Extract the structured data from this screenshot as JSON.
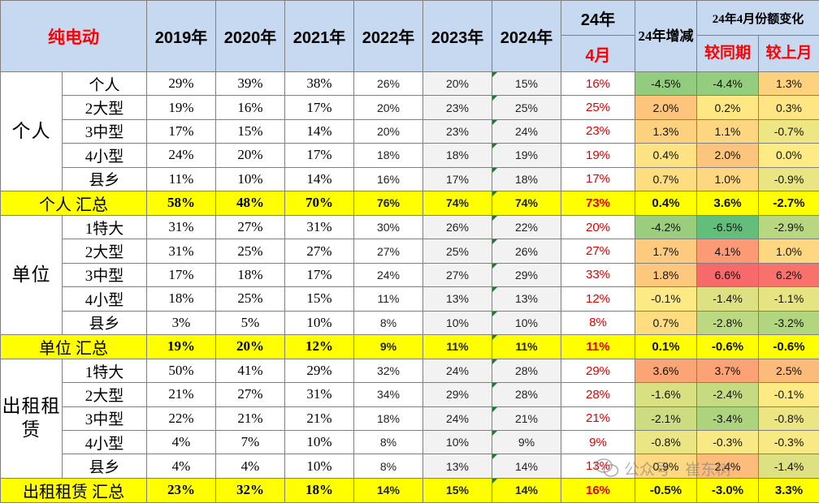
{
  "header": {
    "title": "纯电动",
    "years": [
      "2019年",
      "2020年",
      "2021年",
      "2022年",
      "2023年",
      "2024年"
    ],
    "col_24": "24年",
    "col_apr": "4月",
    "col_change_24": "24年增减",
    "col_apr_share_change": "24年4月份额变化",
    "col_yoy": "较同期",
    "col_mom": "较上月"
  },
  "groups": [
    {
      "name": "个人",
      "rows": [
        {
          "label": "个人",
          "values": [
            "29%",
            "39%",
            "38%",
            "26%",
            "20%",
            "15%"
          ],
          "apr": "16%",
          "chg24": "-4.5%",
          "yoy": "-4.4%",
          "mom": "1.3%"
        },
        {
          "label": "2大型",
          "values": [
            "19%",
            "16%",
            "17%",
            "20%",
            "23%",
            "25%"
          ],
          "apr": "25%",
          "chg24": "2.0%",
          "yoy": "0.2%",
          "mom": "0.3%"
        },
        {
          "label": "3中型",
          "values": [
            "17%",
            "15%",
            "14%",
            "20%",
            "23%",
            "24%"
          ],
          "apr": "23%",
          "chg24": "1.3%",
          "yoy": "1.1%",
          "mom": "-0.7%"
        },
        {
          "label": "4小型",
          "values": [
            "24%",
            "20%",
            "17%",
            "18%",
            "18%",
            "19%"
          ],
          "apr": "19%",
          "chg24": "0.4%",
          "yoy": "2.0%",
          "mom": "0.0%"
        },
        {
          "label": "县乡",
          "values": [
            "11%",
            "10%",
            "14%",
            "16%",
            "17%",
            "18%"
          ],
          "apr": "17%",
          "chg24": "0.7%",
          "yoy": "1.0%",
          "mom": "-0.9%"
        }
      ],
      "summary": {
        "label": "个人 汇总",
        "values": [
          "58%",
          "48%",
          "70%",
          "76%",
          "74%",
          "74%"
        ],
        "apr": "73%",
        "chg24": "0.4%",
        "yoy": "3.6%",
        "mom": "-2.7%"
      }
    },
    {
      "name": "单位",
      "rows": [
        {
          "label": "1特大",
          "values": [
            "31%",
            "27%",
            "31%",
            "30%",
            "26%",
            "22%"
          ],
          "apr": "20%",
          "chg24": "-4.2%",
          "yoy": "-6.5%",
          "mom": "-2.9%"
        },
        {
          "label": "2大型",
          "values": [
            "31%",
            "25%",
            "27%",
            "27%",
            "25%",
            "26%"
          ],
          "apr": "27%",
          "chg24": "1.7%",
          "yoy": "4.1%",
          "mom": "1.0%"
        },
        {
          "label": "3中型",
          "values": [
            "17%",
            "18%",
            "17%",
            "24%",
            "27%",
            "29%"
          ],
          "apr": "33%",
          "chg24": "1.8%",
          "yoy": "6.6%",
          "mom": "6.2%"
        },
        {
          "label": "4小型",
          "values": [
            "18%",
            "25%",
            "15%",
            "11%",
            "13%",
            "13%"
          ],
          "apr": "12%",
          "chg24": "-0.1%",
          "yoy": "-1.4%",
          "mom": "-1.1%"
        },
        {
          "label": "县乡",
          "values": [
            "3%",
            "5%",
            "10%",
            "8%",
            "10%",
            "10%"
          ],
          "apr": "8%",
          "chg24": "0.7%",
          "yoy": "-2.8%",
          "mom": "-3.2%"
        }
      ],
      "summary": {
        "label": "单位 汇总",
        "values": [
          "19%",
          "20%",
          "12%",
          "9%",
          "11%",
          "11%"
        ],
        "apr": "11%",
        "chg24": "0.1%",
        "yoy": "-0.6%",
        "mom": "-0.6%"
      }
    },
    {
      "name": "出租租赁",
      "rows": [
        {
          "label": "1特大",
          "values": [
            "50%",
            "41%",
            "29%",
            "32%",
            "24%",
            "28%"
          ],
          "apr": "29%",
          "chg24": "3.6%",
          "yoy": "3.7%",
          "mom": "2.5%"
        },
        {
          "label": "2大型",
          "values": [
            "21%",
            "27%",
            "31%",
            "34%",
            "29%",
            "28%"
          ],
          "apr": "28%",
          "chg24": "-1.6%",
          "yoy": "-2.4%",
          "mom": "-0.1%"
        },
        {
          "label": "3中型",
          "values": [
            "22%",
            "21%",
            "21%",
            "18%",
            "24%",
            "21%"
          ],
          "apr": "21%",
          "chg24": "-2.1%",
          "yoy": "-3.4%",
          "mom": "-0.8%"
        },
        {
          "label": "4小型",
          "values": [
            "4%",
            "7%",
            "10%",
            "8%",
            "10%",
            "9%"
          ],
          "apr": "9%",
          "chg24": "-0.8%",
          "yoy": "-0.3%",
          "mom": "-0.3%"
        },
        {
          "label": "县乡",
          "values": [
            "4%",
            "4%",
            "10%",
            "8%",
            "13%",
            "14%"
          ],
          "apr": "13%",
          "chg24": "0.9%",
          "yoy": "2.4%",
          "mom": "-1.4%"
        }
      ],
      "summary": {
        "label": "出租租赁 汇总",
        "values": [
          "23%",
          "32%",
          "18%",
          "14%",
          "15%",
          "14%"
        ],
        "apr": "16%",
        "chg24": "-0.5%",
        "yoy": "-3.0%",
        "mom": "3.3%"
      }
    }
  ],
  "watermark": {
    "text": "公众号 · 崔东树",
    "icon": "wechat-icon"
  }
}
